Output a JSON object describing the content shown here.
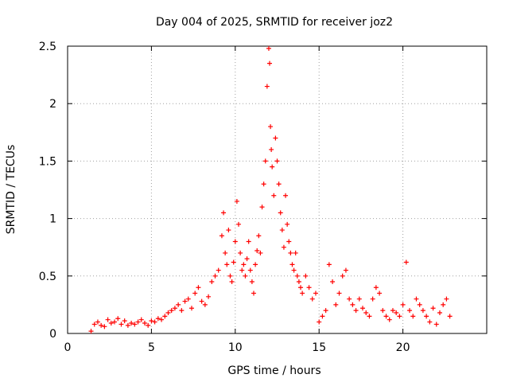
{
  "chart_data": {
    "type": "scatter",
    "title": "Day 004 of 2025, SRMTID for receiver joz2",
    "xlabel": "GPS time / hours",
    "ylabel": "SRMTID / TECUs",
    "xlim": [
      0,
      25
    ],
    "ylim": [
      0,
      2.5
    ],
    "xticks": [
      0,
      5,
      10,
      15,
      20
    ],
    "xtick_labels": [
      "0",
      "5",
      "10",
      "15",
      "20"
    ],
    "yticks": [
      0,
      0.5,
      1,
      1.5,
      2,
      2.5
    ],
    "ytick_labels": [
      "0",
      "0.5",
      "1",
      "1.5",
      "2",
      "2.5"
    ],
    "grid": true,
    "marker": "+",
    "color": "#ff0000",
    "series": [
      {
        "name": "SRMTID",
        "x": [
          1.4,
          1.6,
          1.8,
          2.0,
          2.2,
          2.4,
          2.6,
          2.8,
          3.0,
          3.2,
          3.4,
          3.6,
          3.8,
          4.0,
          4.2,
          4.4,
          4.6,
          4.8,
          5.0,
          5.2,
          5.4,
          5.6,
          5.8,
          6.0,
          6.2,
          6.4,
          6.6,
          6.8,
          7.0,
          7.2,
          7.4,
          7.6,
          7.8,
          8.0,
          8.2,
          8.4,
          8.6,
          8.8,
          9.0,
          9.2,
          9.3,
          9.4,
          9.5,
          9.6,
          9.7,
          9.8,
          9.9,
          10.0,
          10.1,
          10.2,
          10.3,
          10.4,
          10.5,
          10.6,
          10.7,
          10.8,
          10.9,
          11.0,
          11.1,
          11.2,
          11.3,
          11.4,
          11.5,
          11.6,
          11.7,
          11.8,
          11.9,
          12.0,
          12.05,
          12.1,
          12.15,
          12.2,
          12.3,
          12.4,
          12.5,
          12.6,
          12.7,
          12.8,
          12.9,
          13.0,
          13.1,
          13.2,
          13.3,
          13.4,
          13.5,
          13.6,
          13.7,
          13.8,
          13.9,
          14.0,
          14.2,
          14.4,
          14.6,
          14.8,
          15.0,
          15.2,
          15.4,
          15.6,
          15.8,
          16.0,
          16.2,
          16.4,
          16.6,
          16.8,
          17.0,
          17.2,
          17.4,
          17.6,
          17.8,
          18.0,
          18.2,
          18.4,
          18.6,
          18.8,
          19.0,
          19.2,
          19.4,
          19.6,
          19.8,
          20.0,
          20.2,
          20.4,
          20.6,
          20.8,
          21.0,
          21.2,
          21.4,
          21.6,
          21.8,
          22.0,
          22.2,
          22.4,
          22.6,
          22.8
        ],
        "y": [
          0.02,
          0.08,
          0.1,
          0.07,
          0.06,
          0.12,
          0.09,
          0.1,
          0.13,
          0.08,
          0.11,
          0.07,
          0.09,
          0.08,
          0.1,
          0.12,
          0.09,
          0.07,
          0.11,
          0.1,
          0.13,
          0.12,
          0.15,
          0.18,
          0.2,
          0.22,
          0.25,
          0.2,
          0.28,
          0.3,
          0.22,
          0.35,
          0.4,
          0.28,
          0.25,
          0.32,
          0.45,
          0.5,
          0.55,
          0.85,
          1.05,
          0.7,
          0.6,
          0.9,
          0.5,
          0.45,
          0.62,
          0.8,
          1.15,
          0.95,
          0.7,
          0.55,
          0.6,
          0.5,
          0.65,
          0.8,
          0.55,
          0.45,
          0.35,
          0.6,
          0.72,
          0.85,
          0.7,
          1.1,
          1.3,
          1.5,
          2.15,
          2.48,
          2.35,
          1.8,
          1.6,
          1.45,
          1.2,
          1.7,
          1.5,
          1.3,
          1.05,
          0.9,
          0.75,
          1.2,
          0.95,
          0.8,
          0.7,
          0.6,
          0.55,
          0.7,
          0.5,
          0.45,
          0.4,
          0.35,
          0.5,
          0.4,
          0.3,
          0.35,
          0.1,
          0.15,
          0.2,
          0.6,
          0.45,
          0.25,
          0.35,
          0.5,
          0.55,
          0.3,
          0.25,
          0.2,
          0.3,
          0.22,
          0.18,
          0.15,
          0.3,
          0.4,
          0.35,
          0.2,
          0.15,
          0.12,
          0.2,
          0.18,
          0.15,
          0.25,
          0.62,
          0.2,
          0.15,
          0.3,
          0.25,
          0.2,
          0.15,
          0.1,
          0.22,
          0.08,
          0.18,
          0.25,
          0.3,
          0.15
        ]
      }
    ]
  }
}
